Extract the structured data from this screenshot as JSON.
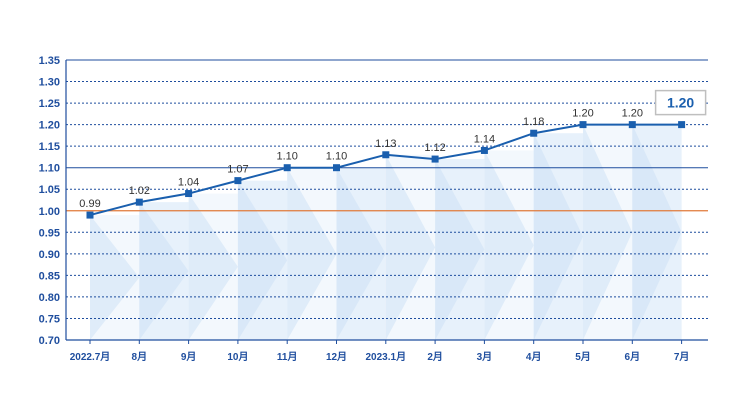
{
  "chart_data": {
    "type": "line",
    "categories": [
      "2022.7月",
      "8月",
      "9月",
      "10月",
      "11月",
      "12月",
      "2023.1月",
      "2月",
      "3月",
      "4月",
      "5月",
      "6月",
      "7月"
    ],
    "values": [
      0.99,
      1.02,
      1.04,
      1.07,
      1.1,
      1.1,
      1.13,
      1.12,
      1.14,
      1.18,
      1.2,
      1.2,
      1.2
    ],
    "data_labels": [
      "0.99",
      "1.02",
      "1.04",
      "1.07",
      "1.10",
      "1.10",
      "1.13",
      "1.12",
      "1.14",
      "1.18",
      "1.20",
      "1.20",
      ""
    ],
    "yticks": [
      "1.35",
      "1.30",
      "1.25",
      "1.20",
      "1.15",
      "1.10",
      "1.05",
      "1.00",
      "0.95",
      "0.90",
      "0.85",
      "0.80",
      "0.75",
      "0.70"
    ],
    "ylim": [
      0.7,
      1.35
    ],
    "ystep": 0.05,
    "solid_gridlines": [
      1.1
    ],
    "reference_line": 1.0,
    "callout": "1.20",
    "title": "",
    "xlabel": "",
    "ylabel": "",
    "grid": true,
    "colors": {
      "line": "#1a5fae",
      "marker": "#1a5fae",
      "grid": "#1f4e9e",
      "reference": "#e07a3a",
      "axis_text": "#1f4e9e",
      "band_light": "#eaf3fc",
      "band_dark": "#d4e6f8",
      "callout_border": "#bfbfbf",
      "callout_text": "#1a5fae"
    }
  }
}
